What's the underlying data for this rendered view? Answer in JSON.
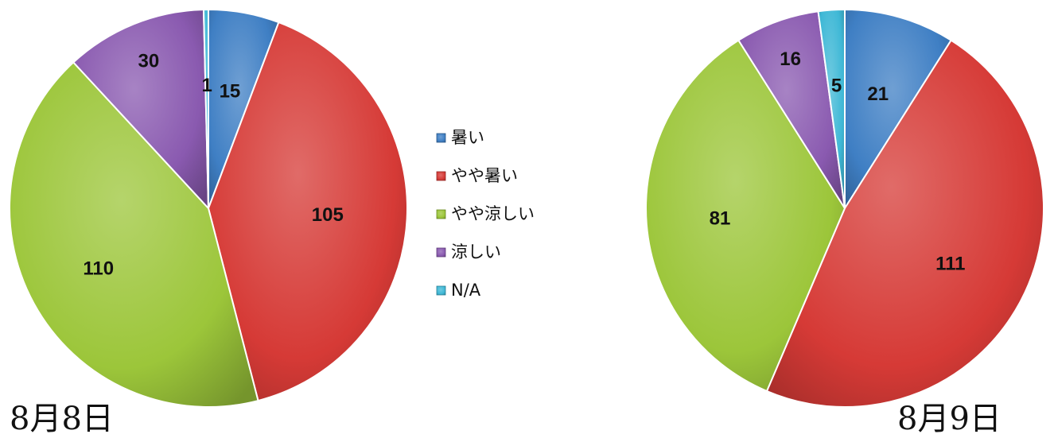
{
  "chart_data": [
    {
      "type": "pie",
      "caption": "8月8日",
      "slices": [
        {
          "category": "暑い",
          "value": 15
        },
        {
          "category": "やや暑い",
          "value": 105
        },
        {
          "category": "やや涼しい",
          "value": 110
        },
        {
          "category": "涼しい",
          "value": 30
        },
        {
          "category": "N/A",
          "value": 1
        }
      ]
    },
    {
      "type": "pie",
      "caption": "8月9日",
      "slices": [
        {
          "category": "暑い",
          "value": 21
        },
        {
          "category": "やや暑い",
          "value": 111
        },
        {
          "category": "やや涼しい",
          "value": 81
        },
        {
          "category": "涼しい",
          "value": 16
        },
        {
          "category": "N/A",
          "value": 5
        }
      ]
    }
  ],
  "legend": {
    "position": "center",
    "items": [
      {
        "label": "暑い",
        "color": "#3f7fc4"
      },
      {
        "label": "やや暑い",
        "color": "#d63a36"
      },
      {
        "label": "やや涼しい",
        "color": "#9cc63a"
      },
      {
        "label": "涼しい",
        "color": "#8a5ab0"
      },
      {
        "label": "N/A",
        "color": "#3fb8d6"
      }
    ]
  }
}
